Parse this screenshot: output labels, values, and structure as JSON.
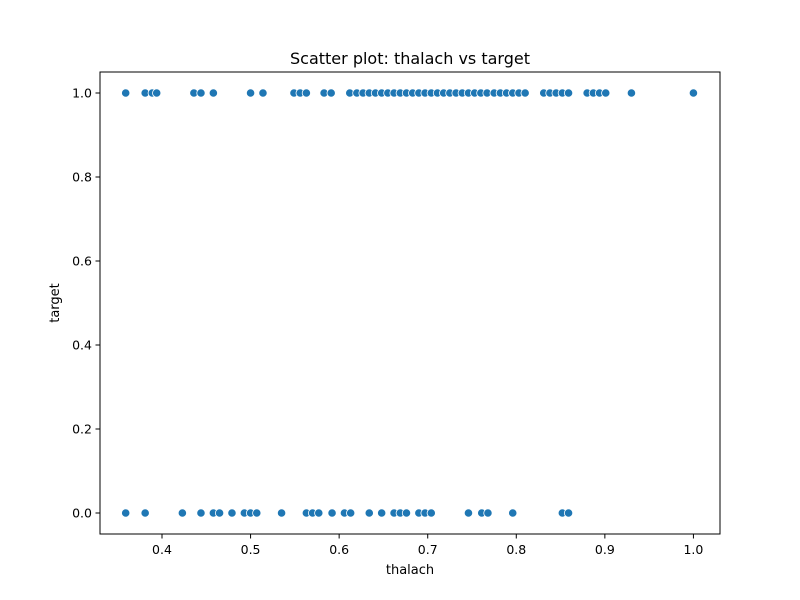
{
  "chart_data": {
    "type": "scatter",
    "title": "Scatter plot: thalach vs target",
    "xlabel": "thalach",
    "ylabel": "target",
    "xlim": [
      0.33,
      1.03
    ],
    "ylim": [
      -0.05,
      1.05
    ],
    "xticks": [
      0.4,
      0.5,
      0.6,
      0.7,
      0.8,
      0.9,
      1.0
    ],
    "xtick_labels": [
      "0.4",
      "0.5",
      "0.6",
      "0.7",
      "0.8",
      "0.9",
      "1.0"
    ],
    "yticks": [
      0.0,
      0.2,
      0.4,
      0.6,
      0.8,
      1.0
    ],
    "ytick_labels": [
      "0.0",
      "0.2",
      "0.4",
      "0.6",
      "0.8",
      "1.0"
    ],
    "grid": false,
    "marker_color": "#1f77b4",
    "series": [
      {
        "target": 1,
        "x": [
          0.359,
          0.381,
          0.389,
          0.394,
          0.436,
          0.444,
          0.458,
          0.5,
          0.514,
          0.549,
          0.556,
          0.563,
          0.583,
          0.591,
          0.612,
          0.62,
          0.627,
          0.634,
          0.641,
          0.648,
          0.655,
          0.662,
          0.669,
          0.676,
          0.683,
          0.69,
          0.697,
          0.704,
          0.711,
          0.718,
          0.725,
          0.732,
          0.739,
          0.746,
          0.753,
          0.76,
          0.767,
          0.775,
          0.782,
          0.789,
          0.796,
          0.803,
          0.81,
          0.831,
          0.838,
          0.845,
          0.852,
          0.859,
          0.88,
          0.887,
          0.894,
          0.901,
          0.93,
          1.0
        ],
        "y": [
          1,
          1,
          1,
          1,
          1,
          1,
          1,
          1,
          1,
          1,
          1,
          1,
          1,
          1,
          1,
          1,
          1,
          1,
          1,
          1,
          1,
          1,
          1,
          1,
          1,
          1,
          1,
          1,
          1,
          1,
          1,
          1,
          1,
          1,
          1,
          1,
          1,
          1,
          1,
          1,
          1,
          1,
          1,
          1,
          1,
          1,
          1,
          1,
          1,
          1,
          1,
          1,
          1,
          1
        ]
      },
      {
        "target": 0,
        "x": [
          0.359,
          0.381,
          0.423,
          0.444,
          0.458,
          0.465,
          0.479,
          0.493,
          0.5,
          0.507,
          0.535,
          0.563,
          0.57,
          0.577,
          0.592,
          0.606,
          0.613,
          0.634,
          0.648,
          0.662,
          0.669,
          0.676,
          0.69,
          0.697,
          0.704,
          0.746,
          0.761,
          0.768,
          0.796,
          0.852,
          0.859
        ],
        "y": [
          0,
          0,
          0,
          0,
          0,
          0,
          0,
          0,
          0,
          0,
          0,
          0,
          0,
          0,
          0,
          0,
          0,
          0,
          0,
          0,
          0,
          0,
          0,
          0,
          0,
          0,
          0,
          0,
          0,
          0,
          0
        ]
      }
    ]
  }
}
